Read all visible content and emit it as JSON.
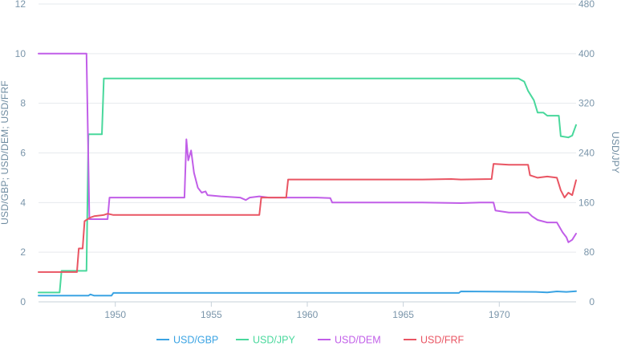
{
  "chart_data": {
    "type": "line",
    "title": "",
    "xlabel": "",
    "ylabel_left": "USD/GBP; USD/DEM; USD/FRF",
    "ylabel_right": "USD/JPY",
    "xlim": [
      1946,
      1974
    ],
    "ylim_left": [
      0,
      12
    ],
    "ylim_right": [
      0,
      480
    ],
    "x_ticks": [
      1950,
      1955,
      1960,
      1965,
      1970
    ],
    "y_ticks_left": [
      0,
      2,
      4,
      6,
      8,
      10,
      12
    ],
    "y_ticks_right": [
      0,
      80,
      160,
      240,
      320,
      400,
      480
    ],
    "grid": "horizontal",
    "legend_position": "bottom",
    "series": [
      {
        "name": "USD/GBP",
        "axis": "left",
        "color": "#3aa3e3",
        "points": [
          [
            1946.0,
            0.25
          ],
          [
            1948.6,
            0.25
          ],
          [
            1948.7,
            0.3
          ],
          [
            1948.9,
            0.25
          ],
          [
            1949.8,
            0.25
          ],
          [
            1949.9,
            0.36
          ],
          [
            1967.9,
            0.36
          ],
          [
            1968.0,
            0.42
          ],
          [
            1971.9,
            0.4
          ],
          [
            1972.5,
            0.38
          ],
          [
            1973.0,
            0.42
          ],
          [
            1973.5,
            0.4
          ],
          [
            1974.0,
            0.43
          ]
        ]
      },
      {
        "name": "USD/JPY",
        "axis": "right",
        "color": "#49d89c",
        "points": [
          [
            1946.0,
            15
          ],
          [
            1947.1,
            15
          ],
          [
            1947.2,
            50
          ],
          [
            1948.5,
            50
          ],
          [
            1948.6,
            270
          ],
          [
            1949.3,
            270
          ],
          [
            1949.4,
            360
          ],
          [
            1971.0,
            360
          ],
          [
            1971.3,
            355
          ],
          [
            1971.5,
            340
          ],
          [
            1971.8,
            325
          ],
          [
            1972.0,
            305
          ],
          [
            1972.3,
            305
          ],
          [
            1972.5,
            300
          ],
          [
            1973.1,
            300
          ],
          [
            1973.2,
            267
          ],
          [
            1973.6,
            265
          ],
          [
            1973.8,
            268
          ],
          [
            1974.0,
            285
          ]
        ]
      },
      {
        "name": "USD/DEM",
        "axis": "left",
        "color": "#c15ee8",
        "points": [
          [
            1946.0,
            10
          ],
          [
            1948.5,
            10
          ],
          [
            1948.65,
            3.33
          ],
          [
            1949.6,
            3.33
          ],
          [
            1949.7,
            4.2
          ],
          [
            1953.6,
            4.2
          ],
          [
            1953.7,
            6.55
          ],
          [
            1953.8,
            5.7
          ],
          [
            1953.95,
            6.1
          ],
          [
            1954.1,
            5.2
          ],
          [
            1954.3,
            4.6
          ],
          [
            1954.5,
            4.4
          ],
          [
            1954.7,
            4.45
          ],
          [
            1954.8,
            4.3
          ],
          [
            1955.5,
            4.25
          ],
          [
            1956.5,
            4.2
          ],
          [
            1956.8,
            4.1
          ],
          [
            1957.0,
            4.2
          ],
          [
            1957.5,
            4.25
          ],
          [
            1958.0,
            4.2
          ],
          [
            1959.0,
            4.2
          ],
          [
            1960.5,
            4.2
          ],
          [
            1961.2,
            4.18
          ],
          [
            1961.3,
            4.0
          ],
          [
            1966.0,
            4.0
          ],
          [
            1968.0,
            3.98
          ],
          [
            1969.0,
            4.0
          ],
          [
            1969.7,
            4.0
          ],
          [
            1969.8,
            3.68
          ],
          [
            1970.5,
            3.6
          ],
          [
            1971.5,
            3.6
          ],
          [
            1971.7,
            3.45
          ],
          [
            1972.0,
            3.3
          ],
          [
            1972.5,
            3.2
          ],
          [
            1973.0,
            3.2
          ],
          [
            1973.3,
            2.8
          ],
          [
            1973.5,
            2.6
          ],
          [
            1973.6,
            2.4
          ],
          [
            1973.8,
            2.5
          ],
          [
            1974.0,
            2.75
          ]
        ]
      },
      {
        "name": "USD/FRF",
        "axis": "left",
        "color": "#e95563",
        "points": [
          [
            1946.0,
            1.2
          ],
          [
            1948.0,
            1.2
          ],
          [
            1948.1,
            2.15
          ],
          [
            1948.3,
            2.15
          ],
          [
            1948.4,
            3.25
          ],
          [
            1948.7,
            3.4
          ],
          [
            1948.9,
            3.45
          ],
          [
            1949.4,
            3.5
          ],
          [
            1949.6,
            3.55
          ],
          [
            1949.9,
            3.5
          ],
          [
            1957.5,
            3.5
          ],
          [
            1957.6,
            4.2
          ],
          [
            1958.9,
            4.2
          ],
          [
            1959.0,
            4.93
          ],
          [
            1963.0,
            4.93
          ],
          [
            1966.0,
            4.93
          ],
          [
            1967.5,
            4.95
          ],
          [
            1968.0,
            4.93
          ],
          [
            1969.6,
            4.95
          ],
          [
            1969.7,
            5.56
          ],
          [
            1970.5,
            5.52
          ],
          [
            1971.5,
            5.52
          ],
          [
            1971.6,
            5.1
          ],
          [
            1972.0,
            5.0
          ],
          [
            1972.5,
            5.05
          ],
          [
            1973.0,
            5.0
          ],
          [
            1973.2,
            4.5
          ],
          [
            1973.4,
            4.2
          ],
          [
            1973.6,
            4.4
          ],
          [
            1973.8,
            4.3
          ],
          [
            1974.0,
            4.9
          ]
        ]
      }
    ]
  }
}
